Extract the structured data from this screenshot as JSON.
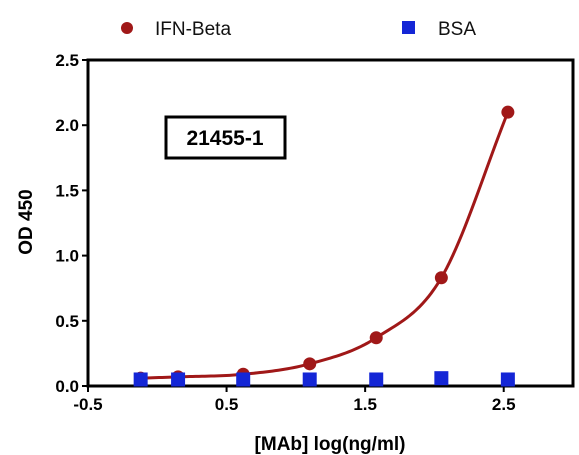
{
  "chart_data": {
    "type": "scatter",
    "title": "",
    "xlabel": "[MAb] log(ng/ml)",
    "ylabel": "OD 450",
    "xlim": [
      -0.5,
      3.0
    ],
    "ylim": [
      0,
      2.5
    ],
    "x_ticks": [
      -0.5,
      0.5,
      1.5,
      2.5
    ],
    "x_tick_labels": [
      "-0.5",
      "0.5",
      "1.5",
      "2.5"
    ],
    "y_ticks": [
      0.0,
      0.5,
      1.0,
      1.5,
      2.0,
      2.5
    ],
    "y_tick_labels": [
      "0.0",
      "0.5",
      "1.0",
      "1.5",
      "2.0",
      "2.5"
    ],
    "grid": false,
    "legend_position": "top",
    "annotation": "21455-1",
    "series": [
      {
        "name": "IFN-Beta",
        "marker": "circle",
        "color": "#a01818",
        "fit_curve": true,
        "x": [
          -0.12,
          0.15,
          0.62,
          1.1,
          1.58,
          2.05,
          2.53
        ],
        "y": [
          0.06,
          0.07,
          0.09,
          0.17,
          0.37,
          0.83,
          2.1
        ]
      },
      {
        "name": "BSA",
        "marker": "square",
        "color": "#1426d6",
        "fit_curve": false,
        "x": [
          -0.12,
          0.15,
          0.62,
          1.1,
          1.58,
          2.05,
          2.53
        ],
        "y": [
          0.05,
          0.05,
          0.05,
          0.05,
          0.05,
          0.06,
          0.05
        ]
      }
    ]
  }
}
